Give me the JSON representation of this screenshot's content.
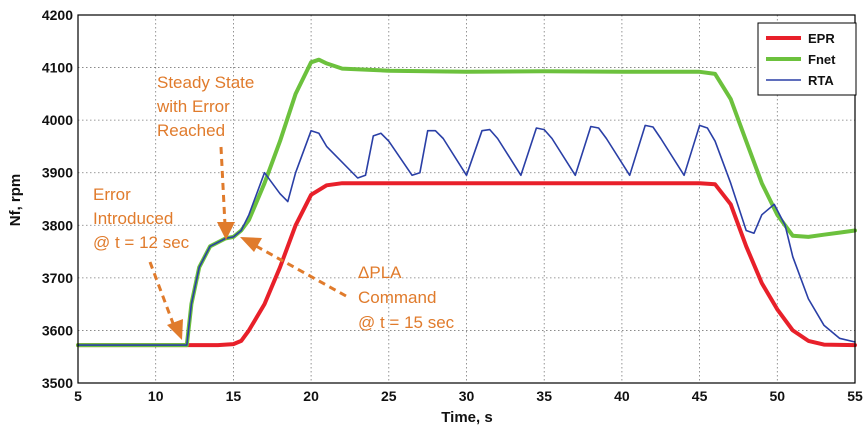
{
  "chart_data": {
    "type": "line",
    "xlabel": "Time, s",
    "ylabel": "Nf, rpm",
    "xlim": [
      5,
      55
    ],
    "ylim": [
      3500,
      4200
    ],
    "xticks": [
      5,
      10,
      15,
      20,
      25,
      30,
      35,
      40,
      45,
      50,
      55
    ],
    "yticks": [
      3500,
      3600,
      3700,
      3800,
      3900,
      4000,
      4100,
      4200
    ],
    "grid": true,
    "legend_position": "top-right",
    "colors": {
      "EPR": "#e8202a",
      "Fnet": "#6cc13d",
      "RTA": "#2a3fa6",
      "annotation": "#e07b2c"
    },
    "series": [
      {
        "name": "EPR",
        "points": [
          [
            5,
            3572
          ],
          [
            10,
            3572
          ],
          [
            12,
            3572
          ],
          [
            14,
            3572
          ],
          [
            15,
            3574
          ],
          [
            15.5,
            3580
          ],
          [
            16,
            3600
          ],
          [
            17,
            3650
          ],
          [
            18,
            3720
          ],
          [
            19,
            3800
          ],
          [
            20,
            3858
          ],
          [
            21,
            3876
          ],
          [
            22,
            3880
          ],
          [
            30,
            3880
          ],
          [
            40,
            3880
          ],
          [
            45,
            3880
          ],
          [
            46,
            3878
          ],
          [
            47,
            3840
          ],
          [
            48,
            3760
          ],
          [
            49,
            3690
          ],
          [
            50,
            3640
          ],
          [
            51,
            3600
          ],
          [
            52,
            3580
          ],
          [
            53,
            3573
          ],
          [
            55,
            3572
          ]
        ]
      },
      {
        "name": "Fnet",
        "points": [
          [
            5,
            3572
          ],
          [
            10,
            3572
          ],
          [
            12,
            3572
          ],
          [
            12.3,
            3650
          ],
          [
            12.8,
            3720
          ],
          [
            13.5,
            3760
          ],
          [
            14.5,
            3775
          ],
          [
            15,
            3778
          ],
          [
            15.5,
            3790
          ],
          [
            16,
            3810
          ],
          [
            17,
            3880
          ],
          [
            18,
            3960
          ],
          [
            19,
            4050
          ],
          [
            20,
            4110
          ],
          [
            20.5,
            4115
          ],
          [
            21,
            4108
          ],
          [
            22,
            4098
          ],
          [
            25,
            4094
          ],
          [
            30,
            4092
          ],
          [
            35,
            4093
          ],
          [
            40,
            4092
          ],
          [
            45,
            4092
          ],
          [
            46,
            4088
          ],
          [
            47,
            4040
          ],
          [
            48,
            3960
          ],
          [
            49,
            3880
          ],
          [
            50,
            3820
          ],
          [
            51,
            3780
          ],
          [
            52,
            3778
          ],
          [
            53,
            3782
          ],
          [
            54,
            3786
          ],
          [
            55,
            3790
          ]
        ]
      },
      {
        "name": "RTA",
        "points": [
          [
            5,
            3572
          ],
          [
            10,
            3572
          ],
          [
            12,
            3572
          ],
          [
            12.3,
            3650
          ],
          [
            12.8,
            3720
          ],
          [
            13.5,
            3760
          ],
          [
            14.5,
            3775
          ],
          [
            15,
            3778
          ],
          [
            15.5,
            3790
          ],
          [
            16,
            3820
          ],
          [
            17,
            3900
          ],
          [
            18,
            3860
          ],
          [
            18.5,
            3845
          ],
          [
            19,
            3900
          ],
          [
            20,
            3980
          ],
          [
            20.5,
            3975
          ],
          [
            21,
            3950
          ],
          [
            23,
            3890
          ],
          [
            23.5,
            3895
          ],
          [
            24,
            3970
          ],
          [
            24.5,
            3975
          ],
          [
            25,
            3960
          ],
          [
            26.5,
            3895
          ],
          [
            27,
            3900
          ],
          [
            27.5,
            3980
          ],
          [
            28,
            3980
          ],
          [
            28.5,
            3965
          ],
          [
            30,
            3895
          ],
          [
            31,
            3980
          ],
          [
            31.5,
            3982
          ],
          [
            32,
            3965
          ],
          [
            33.5,
            3895
          ],
          [
            34.5,
            3985
          ],
          [
            35,
            3982
          ],
          [
            35.5,
            3965
          ],
          [
            37,
            3895
          ],
          [
            38,
            3988
          ],
          [
            38.5,
            3985
          ],
          [
            39,
            3965
          ],
          [
            40.5,
            3895
          ],
          [
            41.5,
            3990
          ],
          [
            42,
            3987
          ],
          [
            42.5,
            3965
          ],
          [
            44,
            3895
          ],
          [
            45,
            3990
          ],
          [
            45.5,
            3985
          ],
          [
            46,
            3960
          ],
          [
            47,
            3880
          ],
          [
            48,
            3790
          ],
          [
            48.5,
            3785
          ],
          [
            49,
            3820
          ],
          [
            49.8,
            3840
          ],
          [
            50.5,
            3800
          ],
          [
            51,
            3740
          ],
          [
            52,
            3660
          ],
          [
            53,
            3610
          ],
          [
            54,
            3585
          ],
          [
            55,
            3578
          ]
        ]
      }
    ],
    "annotations": [
      {
        "lines": [
          "Steady State",
          "with Error",
          "Reached"
        ]
      },
      {
        "lines": [
          "Error",
          "Introduced",
          "@ t = 12 sec"
        ]
      },
      {
        "lines": [
          "ΔPLA",
          "Command",
          "@ t = 15 sec"
        ]
      }
    ]
  }
}
